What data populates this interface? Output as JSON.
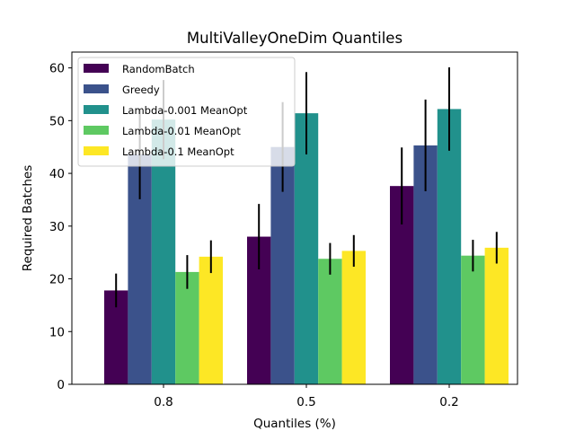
{
  "chart_data": {
    "type": "bar",
    "title": "MultiValleyOneDim Quantiles",
    "xlabel": "Quantiles (%)",
    "ylabel": "Required Batches",
    "categories": [
      "0.8",
      "0.5",
      "0.2"
    ],
    "ylim": [
      0,
      63
    ],
    "yticks": [
      0,
      10,
      20,
      30,
      40,
      50,
      60
    ],
    "legend_position": "top-left",
    "grid": false,
    "series": [
      {
        "name": "RandomBatch",
        "color": "#440154",
        "values": [
          17.8,
          28.0,
          37.6
        ],
        "errors": [
          3.2,
          6.2,
          7.3
        ]
      },
      {
        "name": "Greedy",
        "color": "#3b528b",
        "values": [
          43.6,
          45.0,
          45.3
        ],
        "errors": [
          8.5,
          8.5,
          8.7
        ]
      },
      {
        "name": "Lambda-0.001 MeanOpt",
        "color": "#21918c",
        "values": [
          50.2,
          51.4,
          52.2
        ],
        "errors": [
          7.5,
          7.8,
          7.9
        ]
      },
      {
        "name": "Lambda-0.01 MeanOpt",
        "color": "#5ec962",
        "values": [
          21.3,
          23.8,
          24.4
        ],
        "errors": [
          3.2,
          3.0,
          3.0
        ]
      },
      {
        "name": "Lambda-0.1 MeanOpt",
        "color": "#fde725",
        "values": [
          24.2,
          25.3,
          25.9
        ],
        "errors": [
          3.1,
          3.0,
          3.0
        ]
      }
    ]
  }
}
